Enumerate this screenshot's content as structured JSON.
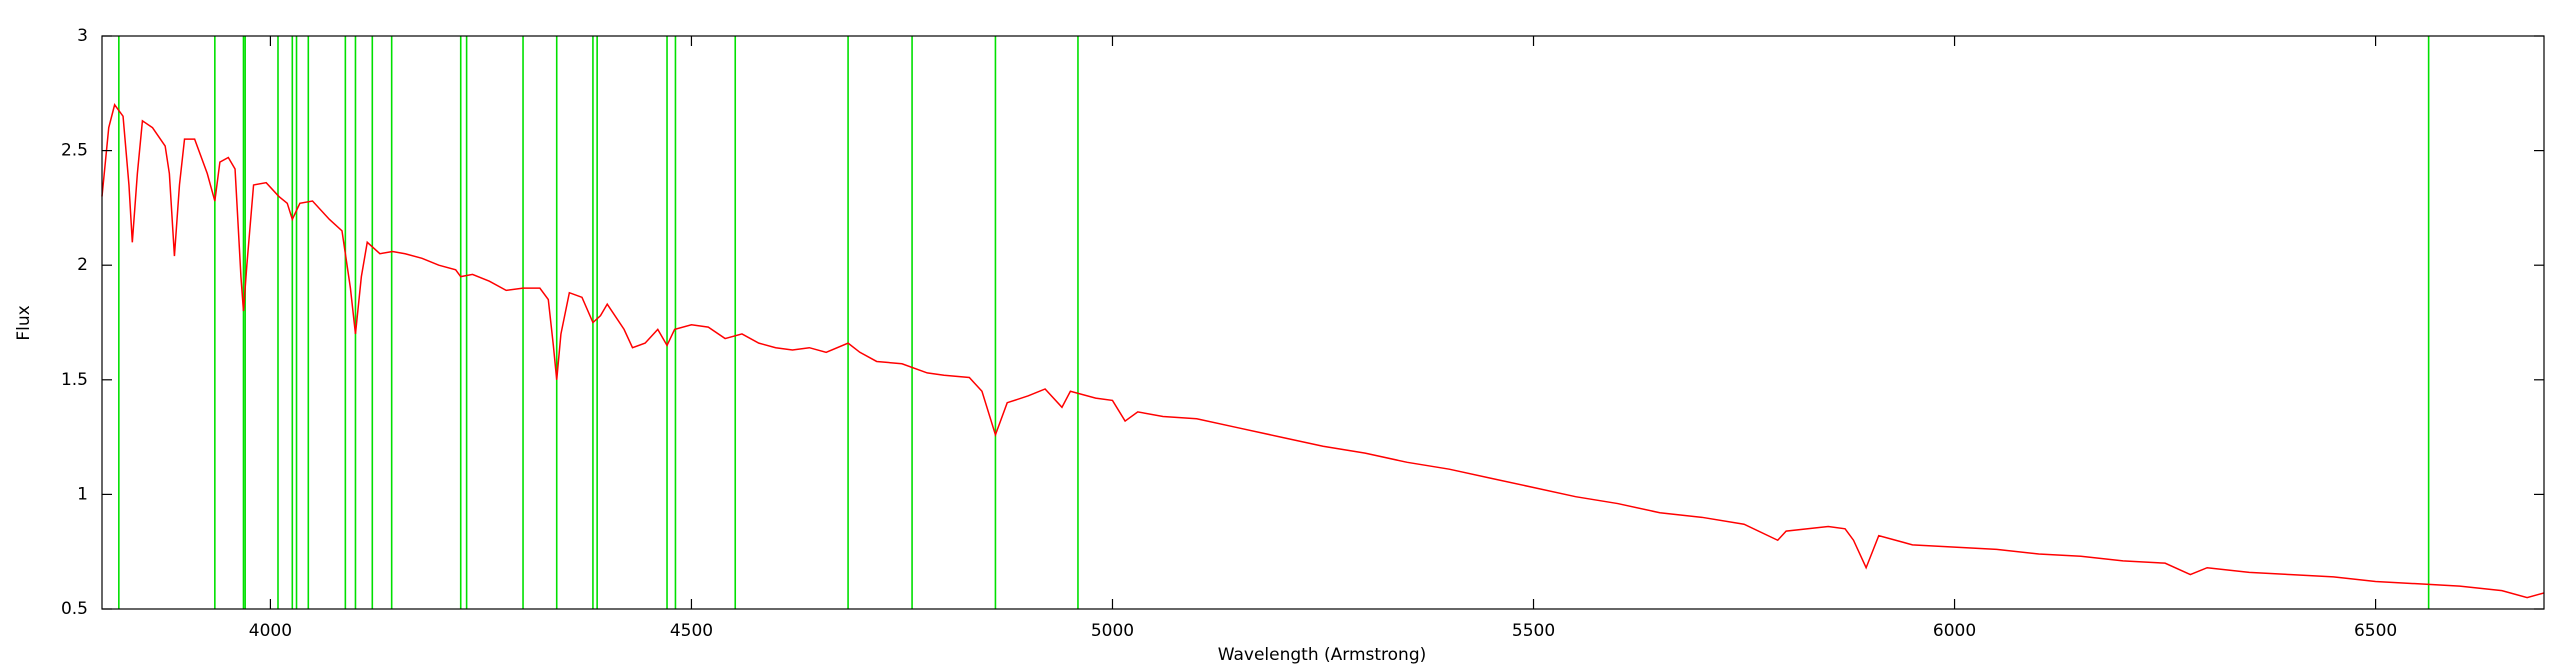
{
  "chart_data": {
    "type": "line",
    "x_label": "Wavelength (Armstrong)",
    "y_label": "Flux",
    "xlim": [
      3800,
      6700
    ],
    "ylim": [
      0.5,
      3
    ],
    "xticks": [
      4000,
      4500,
      5000,
      5500,
      6000,
      6500
    ],
    "yticks": [
      0.5,
      1,
      1.5,
      2,
      2.5,
      3
    ],
    "grid": false,
    "color": "#ff0000",
    "x": [
      3800,
      3808,
      3815,
      3825,
      3832,
      3836,
      3842,
      3848,
      3860,
      3875,
      3880,
      3886,
      3892,
      3898,
      3910,
      3925,
      3934,
      3940,
      3950,
      3958,
      3965,
      3968,
      3972,
      3980,
      3995,
      4010,
      4020,
      4026,
      4035,
      4050,
      4070,
      4085,
      4095,
      4101,
      4108,
      4115,
      4130,
      4145,
      4160,
      4180,
      4200,
      4220,
      4226,
      4240,
      4260,
      4280,
      4300,
      4320,
      4330,
      4336,
      4340,
      4345,
      4355,
      4370,
      4383,
      4392,
      4400,
      4420,
      4430,
      4445,
      4460,
      4471,
      4480,
      4500,
      4520,
      4540,
      4560,
      4580,
      4600,
      4620,
      4640,
      4660,
      4686,
      4700,
      4720,
      4750,
      4780,
      4800,
      4830,
      4845,
      4861,
      4875,
      4900,
      4920,
      4940,
      4950,
      4980,
      5000,
      5015,
      5030,
      5060,
      5100,
      5150,
      5200,
      5250,
      5300,
      5350,
      5400,
      5450,
      5500,
      5550,
      5600,
      5650,
      5700,
      5750,
      5790,
      5800,
      5850,
      5870,
      5880,
      5895,
      5910,
      5950,
      6000,
      6050,
      6100,
      6150,
      6200,
      6250,
      6280,
      6300,
      6350,
      6400,
      6450,
      6500,
      6550,
      6600,
      6650,
      6680,
      6700
    ],
    "values": [
      2.3,
      2.6,
      2.7,
      2.65,
      2.35,
      2.1,
      2.4,
      2.63,
      2.6,
      2.52,
      2.4,
      2.04,
      2.35,
      2.55,
      2.55,
      2.4,
      2.28,
      2.45,
      2.47,
      2.42,
      1.95,
      1.8,
      2.0,
      2.35,
      2.36,
      2.3,
      2.27,
      2.2,
      2.27,
      2.28,
      2.2,
      2.15,
      1.9,
      1.7,
      1.95,
      2.1,
      2.05,
      2.06,
      2.05,
      2.03,
      2.0,
      1.98,
      1.95,
      1.96,
      1.93,
      1.89,
      1.9,
      1.9,
      1.85,
      1.65,
      1.5,
      1.7,
      1.88,
      1.86,
      1.75,
      1.78,
      1.83,
      1.72,
      1.64,
      1.66,
      1.72,
      1.65,
      1.72,
      1.74,
      1.73,
      1.68,
      1.7,
      1.66,
      1.64,
      1.63,
      1.64,
      1.62,
      1.66,
      1.62,
      1.58,
      1.57,
      1.53,
      1.52,
      1.51,
      1.45,
      1.26,
      1.4,
      1.43,
      1.46,
      1.38,
      1.45,
      1.42,
      1.41,
      1.32,
      1.36,
      1.34,
      1.33,
      1.29,
      1.25,
      1.21,
      1.18,
      1.14,
      1.11,
      1.07,
      1.03,
      0.99,
      0.96,
      0.92,
      0.9,
      0.87,
      0.8,
      0.84,
      0.86,
      0.85,
      0.8,
      0.68,
      0.82,
      0.78,
      0.77,
      0.76,
      0.74,
      0.73,
      0.71,
      0.7,
      0.65,
      0.68,
      0.66,
      0.65,
      0.64,
      0.62,
      0.61,
      0.6,
      0.58,
      0.55,
      0.57
    ],
    "vlines": {
      "color": "#00e000",
      "x": [
        3820,
        3934,
        3968,
        3970,
        4009,
        4026,
        4031,
        4045,
        4089,
        4101,
        4121,
        4144,
        4226,
        4233,
        4300,
        4340,
        4383,
        4388,
        4471,
        4481,
        4552,
        4686,
        4762,
        4861,
        4959,
        6563
      ]
    }
  }
}
